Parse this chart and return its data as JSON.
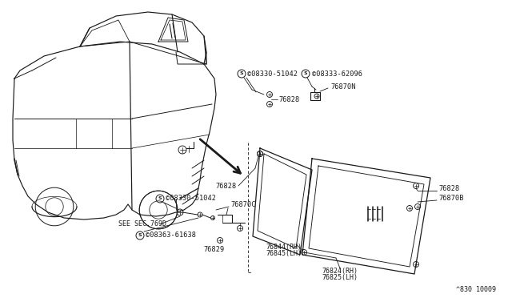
{
  "bg_color": "#ffffff",
  "line_color": "#1a1a1a",
  "ref_code": "830 10009",
  "labels": {
    "s08330_top": "©08330-51042",
    "s08333": "©08333-62096",
    "76870N": "76870N",
    "76828a": "76828",
    "76828b": "76828",
    "76828c": "76828",
    "76844": "76844(RH)",
    "76845": "76845(LH)",
    "76824": "76824(RH)",
    "76825": "76825(LH)",
    "76870B": "76870B",
    "s08330_bot": "©08330-51042",
    "76870C": "76870C",
    "see_sec": "SEE SEC.769D",
    "s08363": "©08363-61638",
    "76829": "76829"
  },
  "fs": 6.2
}
